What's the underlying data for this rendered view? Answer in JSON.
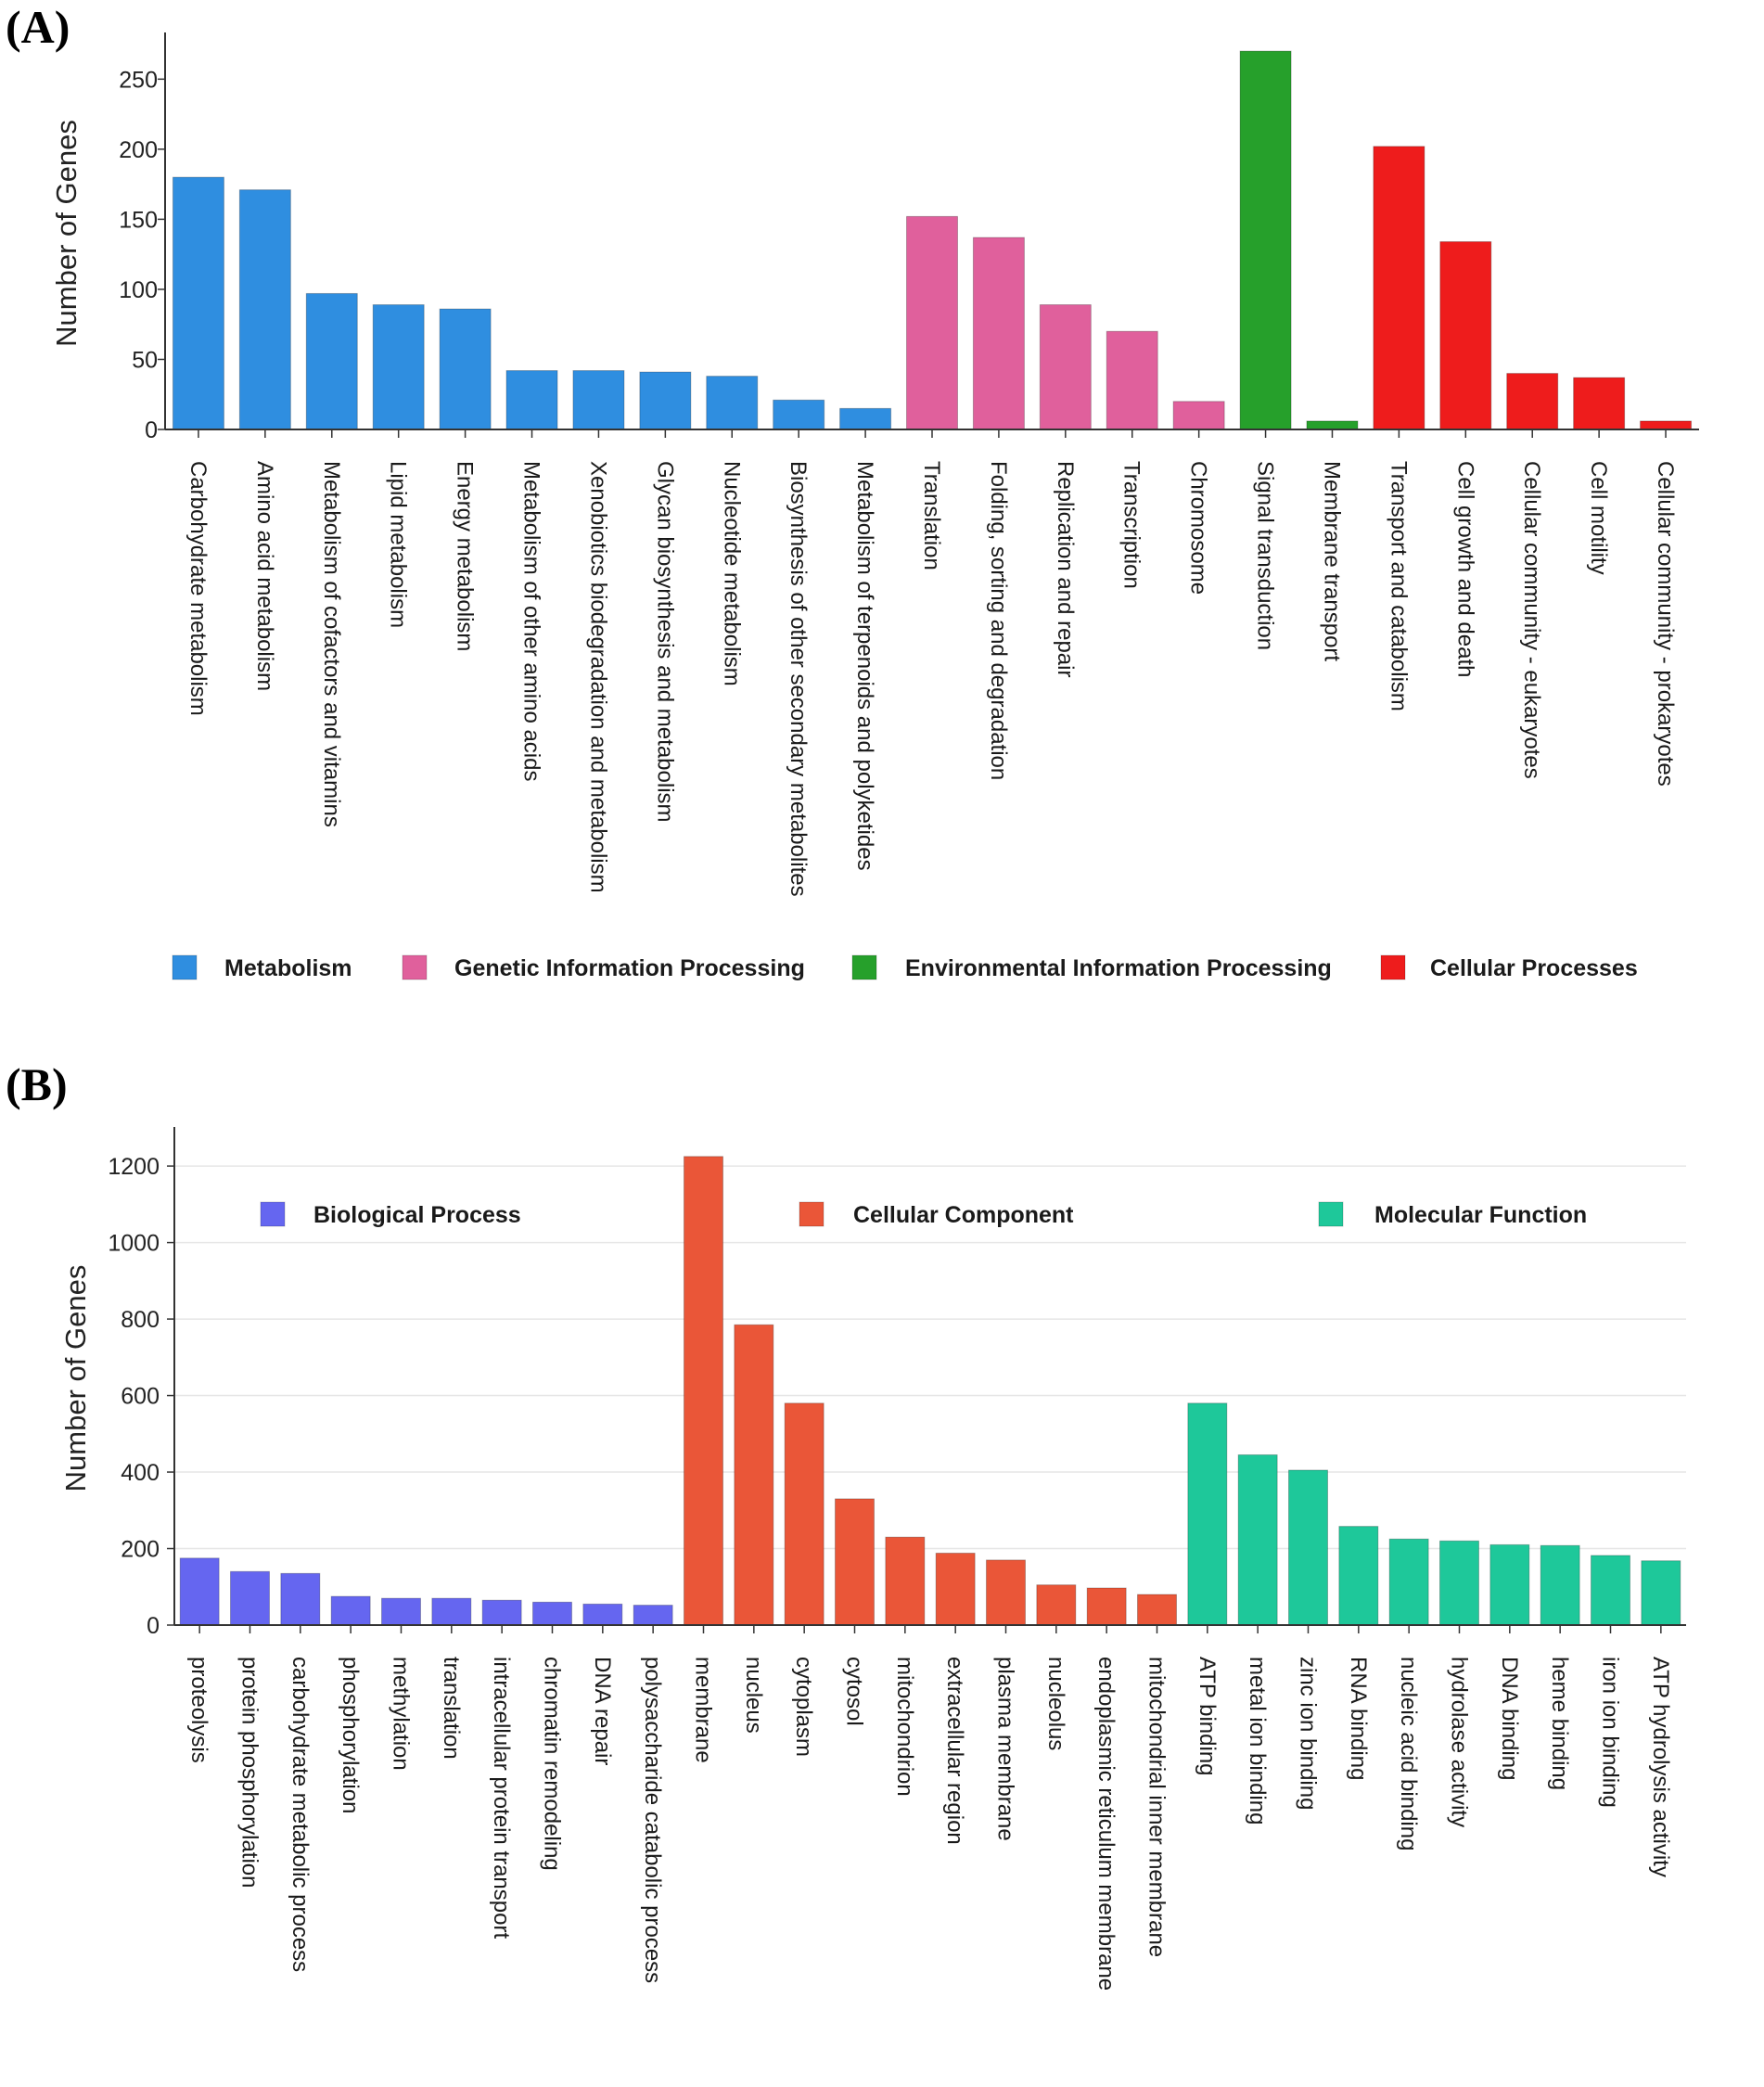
{
  "panels": {
    "a_label": "(A)",
    "b_label": "(B)"
  },
  "chart_data": [
    {
      "type": "bar",
      "panel": "(A)",
      "ylabel": "Number of Genes",
      "xlabel": "",
      "ylim": [
        0,
        280
      ],
      "yticks": [
        0,
        50,
        100,
        150,
        200,
        250
      ],
      "grid": false,
      "legend_position": "bottom",
      "groups": [
        {
          "name": "Metabolism",
          "color": "#2f8ee0"
        },
        {
          "name": "Genetic Information Processing",
          "color": "#e0609c"
        },
        {
          "name": "Environmental Information Processing",
          "color": "#26a02b"
        },
        {
          "name": "Cellular Processes",
          "color": "#ee1c1c"
        }
      ],
      "categories": [
        "Carbohydrate metabolism",
        "Amino acid metabolism",
        "Metabolism of cofactors and vitamins",
        "Lipid metabolism",
        "Energy metabolism",
        "Metabolism of other amino acids",
        "Xenobiotics biodegradation and metabolism",
        "Glycan biosynthesis and metabolism",
        "Nucleotide metabolism",
        "Biosynthesis of other secondary metabolites",
        "Metabolism of terpenoids and polyketides",
        "Translation",
        "Folding, sorting and degradation",
        "Replication and repair",
        "Transcription",
        "Chromosome",
        "Signal transduction",
        "Membrane transport",
        "Transport and catabolism",
        "Cell growth and death",
        "Cellular community - eukaryotes",
        "Cell motility",
        "Cellular community - prokaryotes"
      ],
      "values": [
        180,
        171,
        97,
        89,
        86,
        42,
        42,
        41,
        38,
        21,
        15,
        152,
        137,
        89,
        70,
        20,
        270,
        6,
        202,
        134,
        40,
        37,
        6
      ],
      "group_index": [
        0,
        0,
        0,
        0,
        0,
        0,
        0,
        0,
        0,
        0,
        0,
        1,
        1,
        1,
        1,
        1,
        2,
        2,
        3,
        3,
        3,
        3,
        3
      ]
    },
    {
      "type": "bar",
      "panel": "(B)",
      "ylabel": "Number of Genes",
      "xlabel": "",
      "ylim": [
        0,
        1290
      ],
      "yticks": [
        0,
        200,
        400,
        600,
        800,
        1000,
        1200
      ],
      "grid": true,
      "legend_position": "top",
      "groups": [
        {
          "name": "Biological Process",
          "color": "#6566f0"
        },
        {
          "name": "Cellular Component",
          "color": "#ea5638"
        },
        {
          "name": "Molecular Function",
          "color": "#1ec89a"
        }
      ],
      "categories": [
        "proteolysis",
        "protein phosphorylation",
        "carbohydrate metabolic process",
        "phosphorylation",
        "methylation",
        "translation",
        "intracellular protein transport",
        "chromatin remodeling",
        "DNA repair",
        "polysaccharide catabolic process",
        "membrane",
        "nucleus",
        "cytoplasm",
        "cytosol",
        "mitochondrion",
        "extracellular region",
        "plasma membrane",
        "nucleolus",
        "endoplasmic reticulum membrane",
        "mitochondrial inner membrane",
        "ATP binding",
        "metal ion binding",
        "zinc ion binding",
        "RNA binding",
        "nucleic acid binding",
        "hydrolase activity",
        "DNA binding",
        "heme binding",
        "iron ion binding",
        "ATP hydrolysis activity"
      ],
      "values": [
        175,
        140,
        135,
        75,
        70,
        70,
        65,
        60,
        55,
        52,
        1225,
        785,
        580,
        330,
        230,
        188,
        170,
        105,
        97,
        80,
        580,
        445,
        405,
        258,
        225,
        220,
        210,
        208,
        182,
        168
      ],
      "group_index": [
        0,
        0,
        0,
        0,
        0,
        0,
        0,
        0,
        0,
        0,
        1,
        1,
        1,
        1,
        1,
        1,
        1,
        1,
        1,
        1,
        2,
        2,
        2,
        2,
        2,
        2,
        2,
        2,
        2,
        2
      ]
    }
  ]
}
